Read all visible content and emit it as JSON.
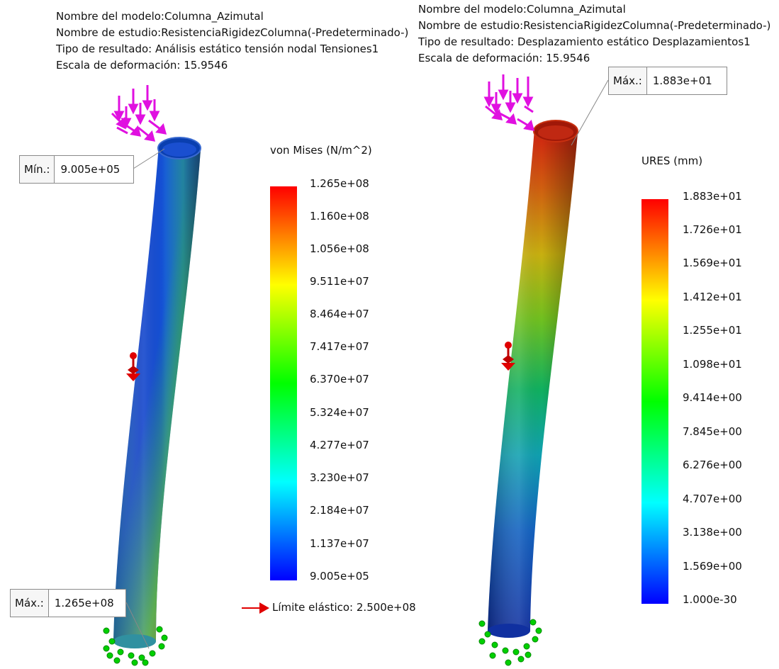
{
  "left_plot": {
    "header": [
      "Nombre del modelo:Columna_Azimutal",
      "Nombre de estudio:ResistenciaRigidezColumna(-Predeterminado-)",
      "Tipo de resultado: Análisis estático tensión nodal Tensiones1",
      "Escala de deformación: 15.9546"
    ],
    "legend_title": "von Mises (N/m^2)",
    "ticks": [
      "1.265e+08",
      "1.160e+08",
      "1.056e+08",
      "9.511e+07",
      "8.464e+07",
      "7.417e+07",
      "6.370e+07",
      "5.324e+07",
      "4.277e+07",
      "3.230e+07",
      "2.184e+07",
      "1.137e+07",
      "9.005e+05"
    ],
    "min_label": "Mín.:",
    "min_value": "9.005e+05",
    "max_label": "Máx.:",
    "max_value": "1.265e+08",
    "yield_text": "Límite elástico: 2.500e+08"
  },
  "right_plot": {
    "header": [
      "Nombre del modelo:Columna_Azimutal",
      "Nombre de estudio:ResistenciaRigidezColumna(-Predeterminado-)",
      "Tipo de resultado: Desplazamiento estático Desplazamientos1",
      "Escala de deformación: 15.9546"
    ],
    "legend_title": "URES (mm)",
    "ticks": [
      "1.883e+01",
      "1.726e+01",
      "1.569e+01",
      "1.412e+01",
      "1.255e+01",
      "1.098e+01",
      "9.414e+00",
      "7.845e+00",
      "6.276e+00",
      "4.707e+00",
      "3.138e+00",
      "1.569e+00",
      "1.000e-30"
    ],
    "max_label": "Máx.:",
    "max_value": "1.883e+01"
  },
  "colors": {
    "scale": [
      "#0000ff",
      "#00ffff",
      "#00ff00",
      "#ffff00",
      "#ff0000"
    ],
    "load_arrows": "#e010e0",
    "fixture": "#00c000",
    "remote_load": "#e00000"
  }
}
